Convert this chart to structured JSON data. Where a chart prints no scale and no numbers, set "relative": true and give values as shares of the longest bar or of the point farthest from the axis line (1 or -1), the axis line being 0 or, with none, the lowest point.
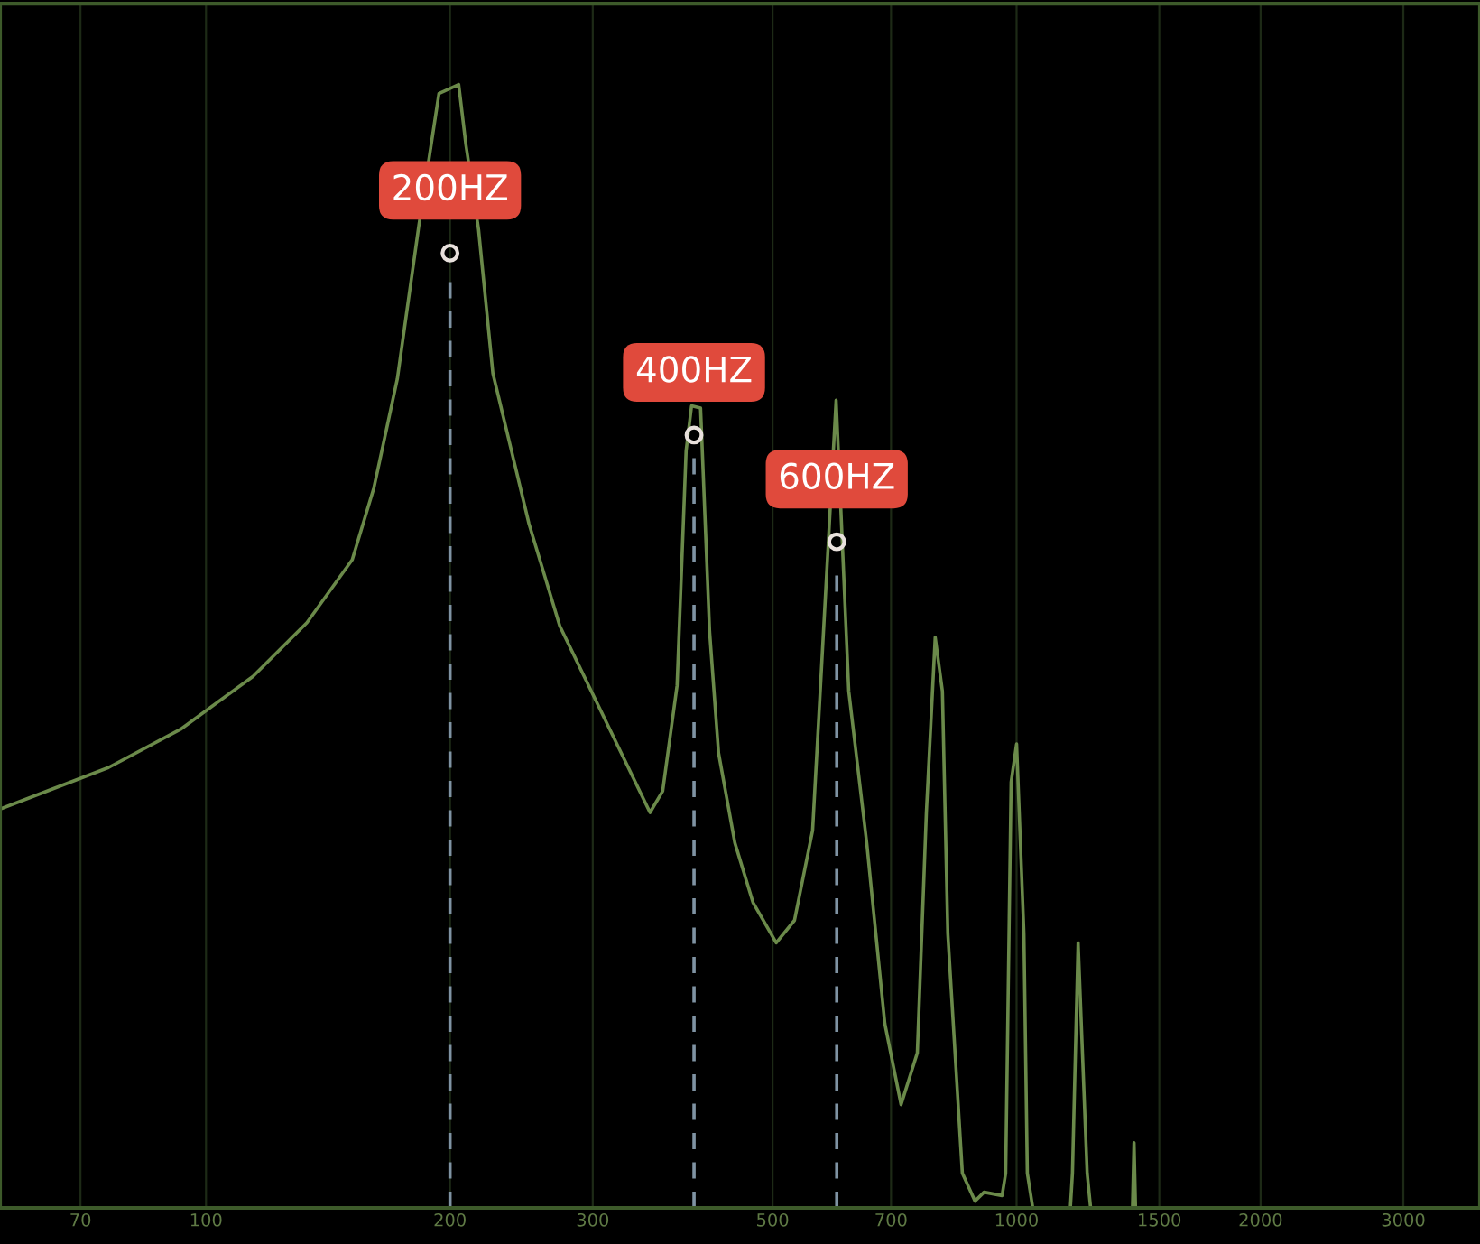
{
  "chart_data": {
    "type": "line",
    "relative": true,
    "log": "x",
    "grid": "x",
    "marker": "none",
    "line_style": "solid",
    "x": [
      55.7,
      75.8,
      93.0,
      114.2,
      133.2,
      151.5,
      161.1,
      172.2,
      183.1,
      193.8,
      205.0,
      209.2,
      216.9,
      225.9,
      250.3,
      273.2,
      353.0,
      365.9,
      381.2,
      391.1,
      397.2,
      407.5,
      418.1,
      428.9,
      449.2,
      472.9,
      505.2,
      532.1,
      560.2,
      577.8,
      598.9,
      620.8,
      653.3,
      687.8,
      720.3,
      754.3,
      773.9,
      793.6,
      810.0,
      822.6,
      857.2,
      888.6,
      911.7,
      959.7,
      969.5,
      984.6,
      1000,
      1021,
      1031,
      1047,
      1100,
      1165,
      1172,
      1191,
      1222,
      1234,
      1300,
      1390,
      1396,
      1402
    ],
    "series": [
      {
        "color": "#6b8a4a",
        "values": [
          0.355,
          0.392,
          0.426,
          0.473,
          0.521,
          0.577,
          0.641,
          0.738,
          0.875,
          0.992,
          1.0,
          0.947,
          0.871,
          0.743,
          0.609,
          0.518,
          0.352,
          0.371,
          0.465,
          0.674,
          0.714,
          0.712,
          0.513,
          0.405,
          0.325,
          0.272,
          0.236,
          0.256,
          0.336,
          0.513,
          0.719,
          0.46,
          0.325,
          0.164,
          0.092,
          0.138,
          0.352,
          0.508,
          0.46,
          0.244,
          0.031,
          0.006,
          0.014,
          0.011,
          0.031,
          0.379,
          0.413,
          0.244,
          0.031,
          0,
          null,
          0,
          0.031,
          0.236,
          0.031,
          0,
          null,
          0,
          0.058,
          0
        ]
      }
    ],
    "xlim": [
      55.7,
      3730
    ],
    "ref_lines": [
      {
        "axis": "x",
        "value": 200,
        "color": "#7f93a3",
        "line_style": "dashed"
      },
      {
        "axis": "x",
        "value": 400,
        "color": "#7f93a3",
        "line_style": "dashed"
      },
      {
        "axis": "x",
        "value": 600,
        "color": "#7f93a3",
        "line_style": "dashed"
      }
    ],
    "xticks": [
      70,
      100,
      200,
      300,
      500,
      700,
      1000,
      1500,
      2000,
      3000
    ],
    "annotations": [
      {
        "text": "200HZ",
        "x": 200,
        "y": 0.85
      },
      {
        "text": "400HZ",
        "x": 400,
        "y": 0.688
      },
      {
        "text": "600HZ",
        "x": 600,
        "y": 0.593
      }
    ]
  }
}
